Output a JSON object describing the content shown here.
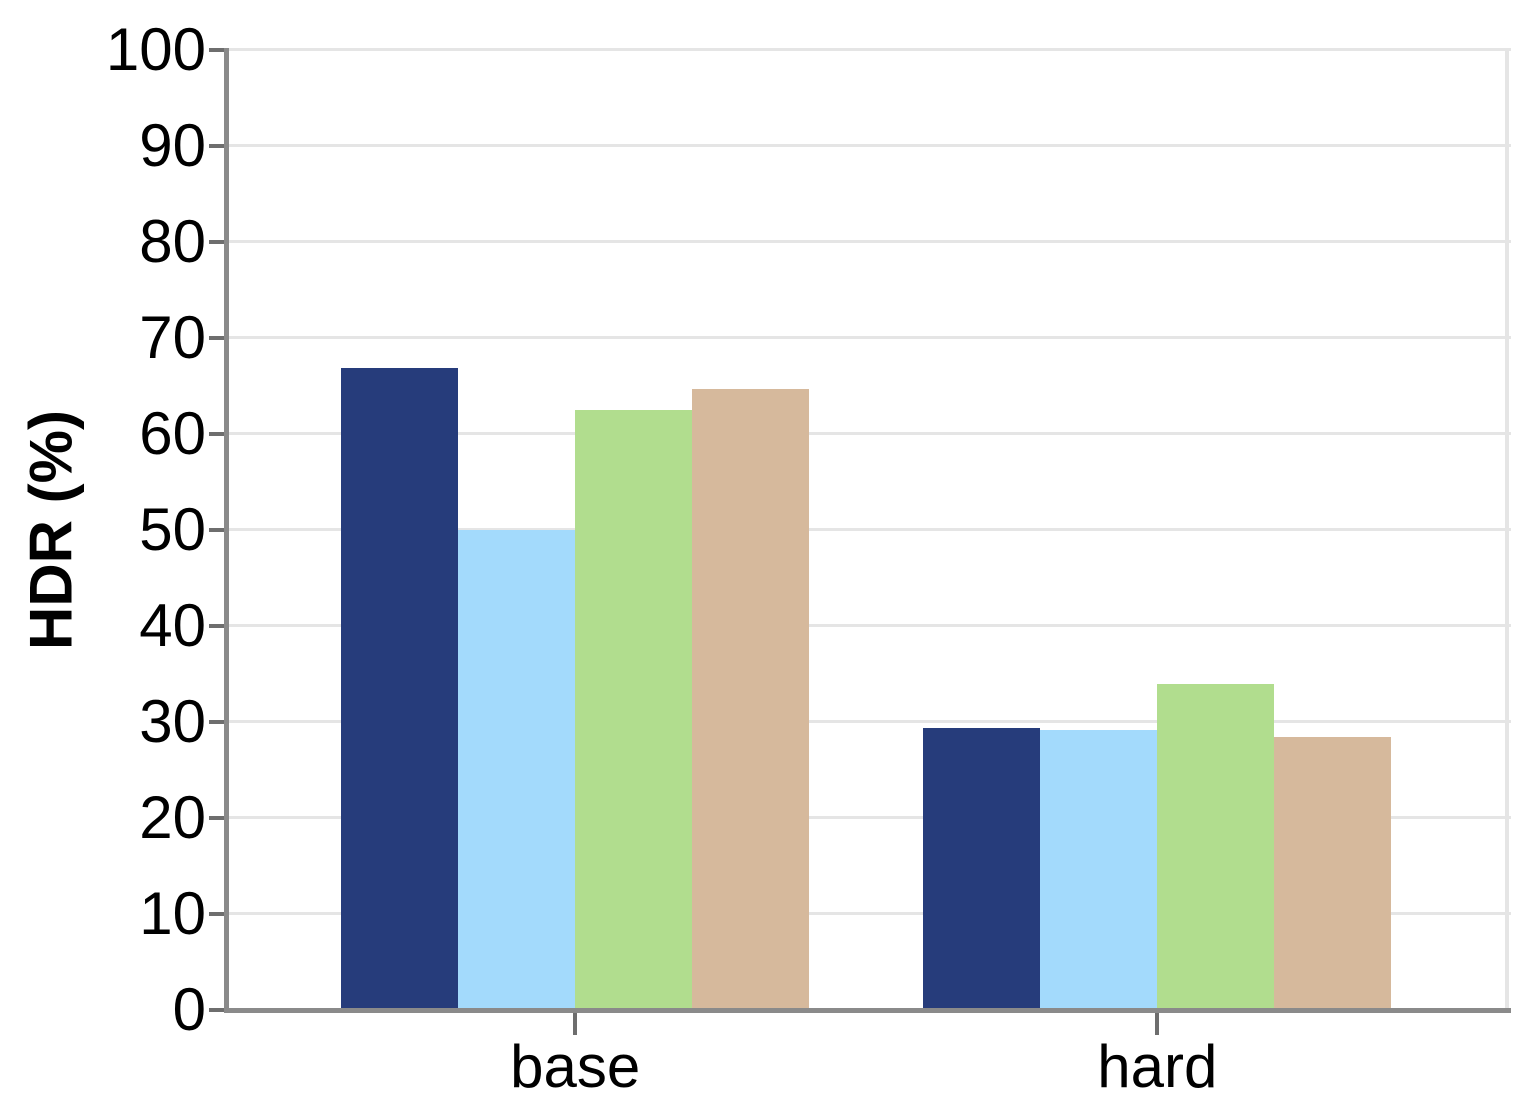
{
  "chart_data": {
    "type": "bar",
    "title": "",
    "ylabel": "HDR (%)",
    "xlabel": "",
    "categories": [
      "base",
      "hard"
    ],
    "series": [
      {
        "name": "navy",
        "color": "#263C7B",
        "values": [
          66.8,
          29.4
        ]
      },
      {
        "name": "light-blue",
        "color": "#A3DAFC",
        "values": [
          50.0,
          29.2
        ]
      },
      {
        "name": "green",
        "color": "#B1DD8E",
        "values": [
          62.5,
          33.9
        ]
      },
      {
        "name": "tan",
        "color": "#D6B99C",
        "values": [
          64.7,
          28.4
        ]
      }
    ],
    "ylim": [
      0,
      100
    ],
    "yticks": [
      0,
      10,
      20,
      30,
      40,
      50,
      60,
      70,
      80,
      90,
      100
    ],
    "grid": true,
    "legend": "none"
  },
  "style": {
    "background": "#FFFFFF",
    "grid_color": "#E5E5E5",
    "spine_color": "#8A8A8A",
    "tick_color": "#6E6E6E",
    "text_color": "#000000"
  }
}
